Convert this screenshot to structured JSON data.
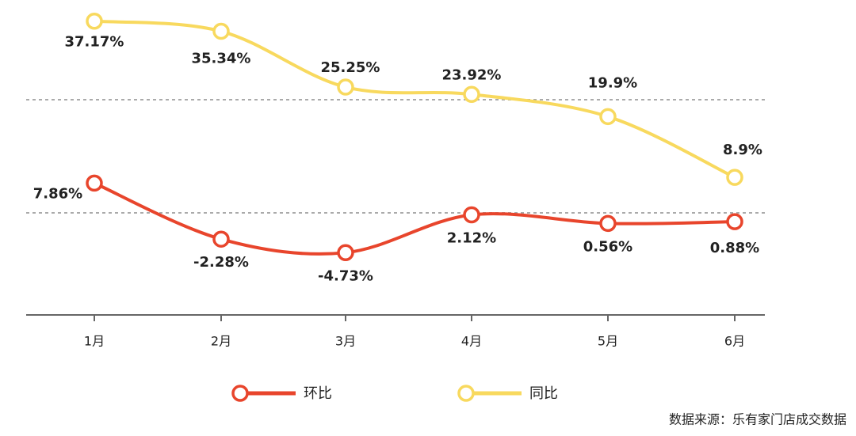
{
  "chart_data": {
    "type": "line",
    "categories": [
      "1月",
      "2月",
      "3月",
      "4月",
      "5月",
      "6月"
    ],
    "ylim": [
      -16,
      41
    ],
    "series": [
      {
        "name": "环比",
        "color": "#e8452c",
        "values": [
          7.86,
          -2.28,
          -4.73,
          2.12,
          0.56,
          0.88
        ],
        "value_labels": [
          "7.86%",
          "-2.28%",
          "-4.73%",
          "2.12%",
          "0.56%",
          "0.88%"
        ]
      },
      {
        "name": "同比",
        "color": "#f8d95e",
        "values": [
          37.17,
          35.34,
          25.25,
          23.92,
          19.9,
          8.9
        ],
        "value_labels": [
          "37.17%",
          "35.34%",
          "25.25%",
          "23.92%",
          "19.9%",
          "8.9%"
        ]
      }
    ],
    "source": "数据来源：乐有家门店成交数据"
  }
}
